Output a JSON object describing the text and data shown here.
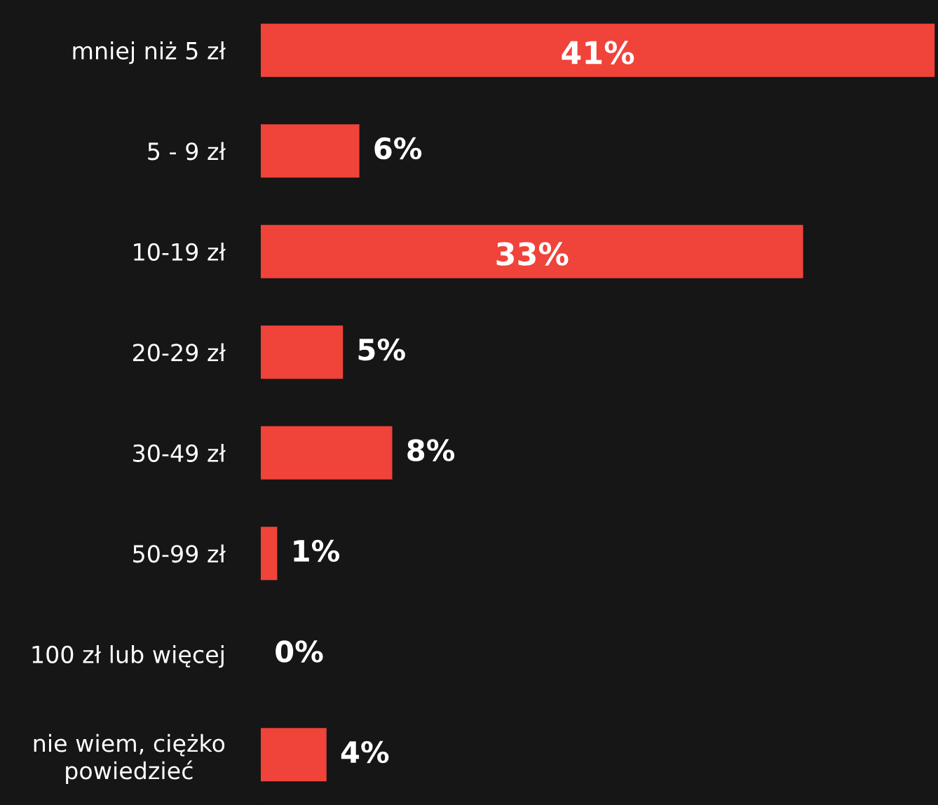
{
  "chart_data": {
    "type": "bar",
    "orientation": "horizontal",
    "categories": [
      "mniej niż 5 zł",
      "5 - 9 zł",
      "10-19 zł",
      "20-29 zł",
      "30-49 zł",
      "50-99 zł",
      "100 zł lub więcej",
      "nie wiem, ciężko\npowiedzieć"
    ],
    "values": [
      41,
      6,
      33,
      5,
      8,
      1,
      0,
      4
    ],
    "value_labels": [
      "41%",
      "6%",
      "33%",
      "5%",
      "8%",
      "1%",
      "0%",
      "4%"
    ],
    "color": "#f0433a",
    "grid": false,
    "legend": false
  }
}
